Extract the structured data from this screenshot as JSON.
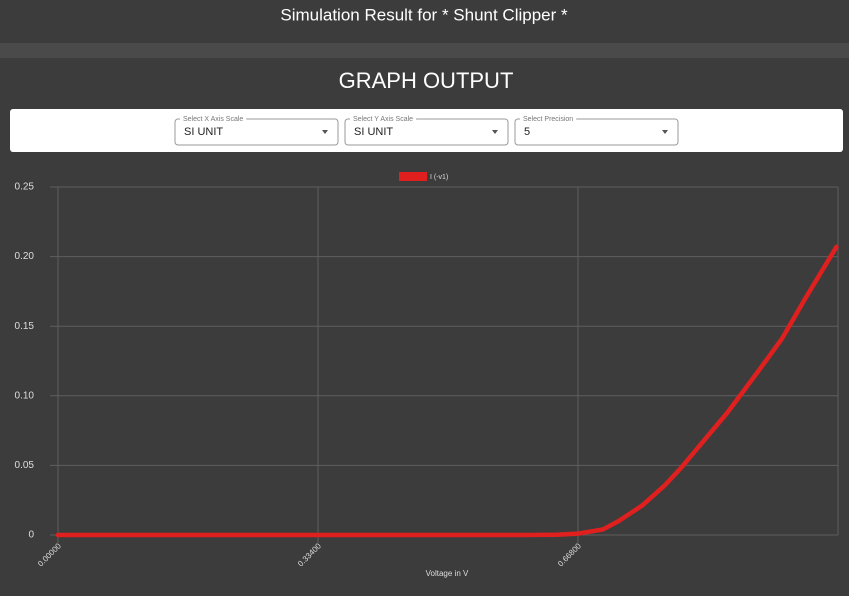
{
  "header": {
    "title": "Simulation Result for * Shunt Clipper *"
  },
  "section_title": "GRAPH OUTPUT",
  "controls": [
    {
      "label": "Select X Axis Scale",
      "value": "SI UNIT"
    },
    {
      "label": "Select Y Axis Scale",
      "value": "SI UNIT"
    },
    {
      "label": "Select Precision",
      "value": "5"
    }
  ],
  "chart_data": {
    "type": "line",
    "x_label": "Voltage in V",
    "x": [
      0,
      0.1,
      0.2,
      0.3,
      0.4,
      0.5,
      0.55,
      0.6,
      0.64,
      0.668,
      0.7,
      0.72,
      0.75,
      0.78,
      0.8,
      0.83,
      0.86,
      0.9,
      0.93,
      0.96,
      1.0
    ],
    "series": [
      {
        "name": "I (-v1)",
        "color": "#e0201f",
        "values": [
          0,
          0,
          0,
          0,
          0,
          0,
          0,
          0,
          0.0002,
          0.001,
          0.004,
          0.01,
          0.021,
          0.036,
          0.048,
          0.068,
          0.088,
          0.118,
          0.141,
          0.17,
          0.207
        ]
      }
    ],
    "xlim": [
      0,
      1.002
    ],
    "xticks": [
      {
        "value": 0,
        "label": "0.00000"
      },
      {
        "value": 0.334,
        "label": "0.33400"
      },
      {
        "value": 0.668,
        "label": "0.66800"
      }
    ],
    "ylim": [
      0,
      0.25
    ],
    "yticks": [
      0,
      0.05,
      {
        "value": 0.1,
        "label": "0.10"
      },
      0.15,
      {
        "value": 0.2,
        "label": "0.20"
      },
      0.25
    ],
    "grid": true,
    "legend": "top"
  }
}
